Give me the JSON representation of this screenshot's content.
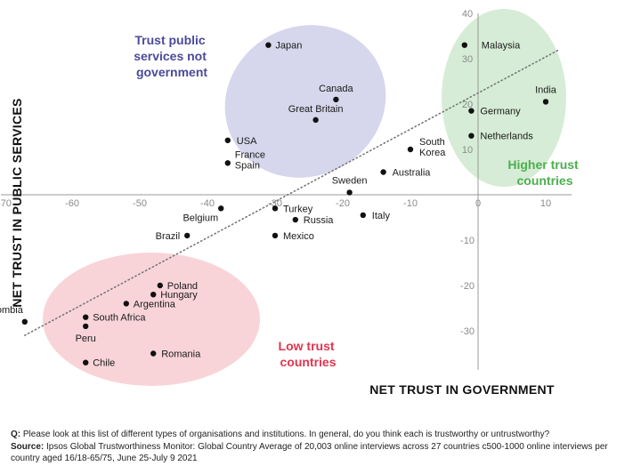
{
  "chart_data": {
    "type": "scatter",
    "xlabel": "NET TRUST IN GOVERNMENT",
    "ylabel": "NET TRUST IN PUBLIC SERVICES",
    "xlim": [
      -70,
      12
    ],
    "ylim": [
      -38,
      40
    ],
    "x_ticks": [
      -70,
      -60,
      -50,
      -40,
      -30,
      -20,
      -10,
      0,
      10
    ],
    "y_ticks": [
      -30,
      -20,
      -10,
      10,
      20,
      30,
      40
    ],
    "grid": false,
    "trendline": {
      "style": "dotted",
      "from": [
        -67,
        -31
      ],
      "to": [
        12,
        32
      ]
    },
    "points": [
      {
        "name": "Japan",
        "x": -31,
        "y": 33,
        "label_lines": [
          "Japan"
        ]
      },
      {
        "name": "Canada",
        "x": -21,
        "y": 21,
        "label_lines": [
          "Canada"
        ]
      },
      {
        "name": "Great Britain",
        "x": -24,
        "y": 16.5,
        "label_lines": [
          "Great Britain"
        ]
      },
      {
        "name": "USA",
        "x": -37,
        "y": 12,
        "label_lines": [
          "USA"
        ]
      },
      {
        "name": "France Spain",
        "x": -37,
        "y": 7,
        "label_lines": [
          "France",
          "Spain"
        ]
      },
      {
        "name": "Malaysia",
        "x": -2,
        "y": 33,
        "label_lines": [
          "Malaysia"
        ]
      },
      {
        "name": "India",
        "x": 10,
        "y": 20.5,
        "label_lines": [
          "India"
        ]
      },
      {
        "name": "Germany",
        "x": -1,
        "y": 18.5,
        "label_lines": [
          "Germany"
        ]
      },
      {
        "name": "Netherlands",
        "x": -1,
        "y": 13,
        "label_lines": [
          "Netherlands"
        ]
      },
      {
        "name": "South Korea",
        "x": -10,
        "y": 10,
        "label_lines": [
          "South",
          "Korea"
        ]
      },
      {
        "name": "Australia",
        "x": -14,
        "y": 5,
        "label_lines": [
          "Australia"
        ]
      },
      {
        "name": "Sweden",
        "x": -19,
        "y": 0.5,
        "label_lines": [
          "Sweden"
        ]
      },
      {
        "name": "Belgium",
        "x": -38,
        "y": -3,
        "label_lines": [
          "Belgium"
        ]
      },
      {
        "name": "Turkey",
        "x": -30,
        "y": -3,
        "label_lines": [
          "Turkey"
        ]
      },
      {
        "name": "Russia",
        "x": -27,
        "y": -5.5,
        "label_lines": [
          "Russia"
        ]
      },
      {
        "name": "Italy",
        "x": -17,
        "y": -4.5,
        "label_lines": [
          "Italy"
        ]
      },
      {
        "name": "Brazil",
        "x": -43,
        "y": -9,
        "label_lines": [
          "Brazil"
        ]
      },
      {
        "name": "Mexico",
        "x": -30,
        "y": -9,
        "label_lines": [
          "Mexico"
        ]
      },
      {
        "name": "Poland",
        "x": -47,
        "y": -20,
        "label_lines": [
          "Poland"
        ]
      },
      {
        "name": "Hungary",
        "x": -48,
        "y": -22,
        "label_lines": [
          "Hungary"
        ]
      },
      {
        "name": "Argentina",
        "x": -52,
        "y": -24,
        "label_lines": [
          "Argentina"
        ]
      },
      {
        "name": "Colombia",
        "x": -67,
        "y": -28,
        "label_lines": [
          "Colombia"
        ]
      },
      {
        "name": "South Africa",
        "x": -58,
        "y": -27,
        "label_lines": [
          "South Africa"
        ]
      },
      {
        "name": "Peru",
        "x": -58,
        "y": -29,
        "label_lines": [
          "Peru"
        ]
      },
      {
        "name": "Chile",
        "x": -58,
        "y": -37,
        "label_lines": [
          "Chile"
        ]
      },
      {
        "name": "Romania",
        "x": -48,
        "y": -35,
        "label_lines": [
          "Romania"
        ]
      }
    ],
    "groups": [
      {
        "name": "trust-public-services-not-government",
        "lines": [
          "Trust public",
          "services not",
          "government"
        ],
        "color": "#4a4a9a",
        "fill": "#d6d6ec"
      },
      {
        "name": "higher-trust-countries",
        "lines": [
          "Higher trust",
          "countries"
        ],
        "color": "#4caf50",
        "fill": "#d6ecd6"
      },
      {
        "name": "low-trust-countries",
        "lines": [
          "Low trust",
          "countries"
        ],
        "color": "#e0364f",
        "fill": "#f8d4d8"
      }
    ]
  },
  "footer": {
    "question_label": "Q:",
    "question_text": " Please look at this list of different types of organisations and institutions. In general, do you think each is trustworthy or untrustworthy?",
    "source_label": "Source:",
    "source_text": " Ipsos Global Trustworthiness Monitor: Global Country Average of 20,003 online interviews across 27 countries c500-1000 online interviews per country aged 16/18-65/75, June 25-July 9 2021"
  }
}
